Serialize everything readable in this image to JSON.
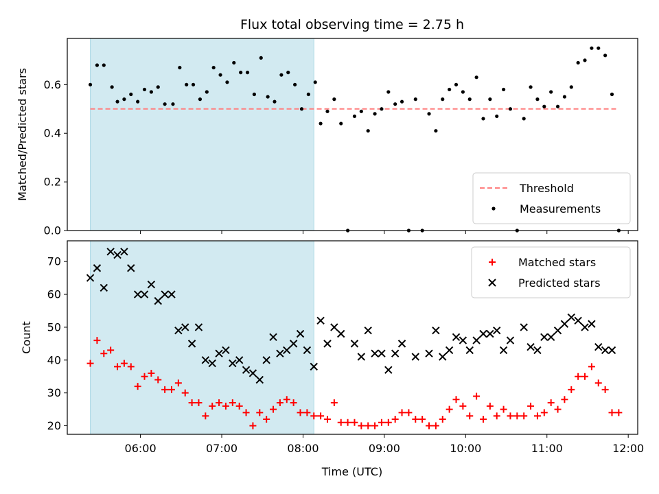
{
  "chart_data": {
    "type": "scatter",
    "title": "Flux total observing time = 2.75 h",
    "xlabel": "Time (UTC)",
    "x_ticks": [
      "06:00",
      "07:00",
      "08:00",
      "09:00",
      "10:00",
      "11:00",
      "12:00"
    ],
    "highlight_span": {
      "start": "05:23",
      "end": "08:08",
      "color": "#add8e6"
    },
    "panels": [
      {
        "ylabel": "Matched/Predicted stars",
        "ylim": [
          0,
          0.79
        ],
        "y_ticks": [
          "0.0",
          "0.2",
          "0.4",
          "0.6"
        ],
        "legend": "bottom-right",
        "threshold": {
          "name": "Threshold",
          "value": 0.5,
          "x_range": [
            "05:23",
            "11:51"
          ],
          "color": "#ff7f7f"
        },
        "series": [
          {
            "name": "Measurements",
            "color": "#000000",
            "marker": "dot",
            "points": [
              [
                "05:23",
                0.6
              ],
              [
                "05:28",
                0.68
              ],
              [
                "05:33",
                0.68
              ],
              [
                "05:39",
                0.59
              ],
              [
                "05:43",
                0.53
              ],
              [
                "05:48",
                0.54
              ],
              [
                "05:53",
                0.56
              ],
              [
                "05:58",
                0.53
              ],
              [
                "06:03",
                0.58
              ],
              [
                "06:08",
                0.57
              ],
              [
                "06:13",
                0.59
              ],
              [
                "06:18",
                0.52
              ],
              [
                "06:24",
                0.52
              ],
              [
                "06:29",
                0.67
              ],
              [
                "06:34",
                0.6
              ],
              [
                "06:39",
                0.6
              ],
              [
                "06:44",
                0.54
              ],
              [
                "06:49",
                0.57
              ],
              [
                "06:54",
                0.67
              ],
              [
                "06:59",
                0.64
              ],
              [
                "07:04",
                0.61
              ],
              [
                "07:09",
                0.69
              ],
              [
                "07:14",
                0.65
              ],
              [
                "07:19",
                0.65
              ],
              [
                "07:24",
                0.56
              ],
              [
                "07:29",
                0.71
              ],
              [
                "07:34",
                0.55
              ],
              [
                "07:39",
                0.53
              ],
              [
                "07:44",
                0.64
              ],
              [
                "07:49",
                0.65
              ],
              [
                "07:54",
                0.6
              ],
              [
                "07:59",
                0.5
              ],
              [
                "08:04",
                0.56
              ],
              [
                "08:09",
                0.61
              ],
              [
                "08:13",
                0.44
              ],
              [
                "08:18",
                0.49
              ],
              [
                "08:23",
                0.54
              ],
              [
                "08:28",
                0.44
              ],
              [
                "08:33",
                0.0
              ],
              [
                "08:38",
                0.47
              ],
              [
                "08:43",
                0.49
              ],
              [
                "08:48",
                0.41
              ],
              [
                "08:53",
                0.48
              ],
              [
                "08:58",
                0.5
              ],
              [
                "09:03",
                0.57
              ],
              [
                "09:08",
                0.52
              ],
              [
                "09:13",
                0.53
              ],
              [
                "09:18",
                0.0
              ],
              [
                "09:23",
                0.54
              ],
              [
                "09:28",
                0.0
              ],
              [
                "09:33",
                0.48
              ],
              [
                "09:38",
                0.41
              ],
              [
                "09:43",
                0.54
              ],
              [
                "09:48",
                0.58
              ],
              [
                "09:53",
                0.6
              ],
              [
                "09:58",
                0.57
              ],
              [
                "10:03",
                0.54
              ],
              [
                "10:08",
                0.63
              ],
              [
                "10:13",
                0.46
              ],
              [
                "10:18",
                0.54
              ],
              [
                "10:23",
                0.47
              ],
              [
                "10:28",
                0.58
              ],
              [
                "10:33",
                0.5
              ],
              [
                "10:38",
                0.0
              ],
              [
                "10:43",
                0.46
              ],
              [
                "10:48",
                0.59
              ],
              [
                "10:53",
                0.54
              ],
              [
                "10:58",
                0.51
              ],
              [
                "11:03",
                0.57
              ],
              [
                "11:08",
                0.51
              ],
              [
                "11:13",
                0.55
              ],
              [
                "11:18",
                0.59
              ],
              [
                "11:23",
                0.69
              ],
              [
                "11:28",
                0.7
              ],
              [
                "11:33",
                0.75
              ],
              [
                "11:38",
                0.75
              ],
              [
                "11:43",
                0.72
              ],
              [
                "11:48",
                0.56
              ],
              [
                "11:53",
                0.0
              ]
            ]
          }
        ]
      },
      {
        "ylabel": "Count",
        "ylim": [
          17.4,
          76.3
        ],
        "y_ticks": [
          "20",
          "30",
          "40",
          "50",
          "60",
          "70"
        ],
        "legend": "top-right",
        "series": [
          {
            "name": "Matched stars",
            "color": "#ff0000",
            "marker": "plus",
            "points": [
              [
                "05:23",
                39
              ],
              [
                "05:28",
                46
              ],
              [
                "05:33",
                42
              ],
              [
                "05:38",
                43
              ],
              [
                "05:43",
                38
              ],
              [
                "05:48",
                39
              ],
              [
                "05:53",
                38
              ],
              [
                "05:58",
                32
              ],
              [
                "06:03",
                35
              ],
              [
                "06:08",
                36
              ],
              [
                "06:13",
                34
              ],
              [
                "06:18",
                31
              ],
              [
                "06:23",
                31
              ],
              [
                "06:28",
                33
              ],
              [
                "06:33",
                30
              ],
              [
                "06:38",
                27
              ],
              [
                "06:43",
                27
              ],
              [
                "06:48",
                23
              ],
              [
                "06:53",
                26
              ],
              [
                "06:58",
                27
              ],
              [
                "07:03",
                26
              ],
              [
                "07:08",
                27
              ],
              [
                "07:13",
                26
              ],
              [
                "07:18",
                24
              ],
              [
                "07:23",
                20
              ],
              [
                "07:28",
                24
              ],
              [
                "07:33",
                22
              ],
              [
                "07:38",
                25
              ],
              [
                "07:43",
                27
              ],
              [
                "07:48",
                28
              ],
              [
                "07:53",
                27
              ],
              [
                "07:58",
                24
              ],
              [
                "08:03",
                24
              ],
              [
                "08:08",
                23
              ],
              [
                "08:13",
                23
              ],
              [
                "08:18",
                22
              ],
              [
                "08:23",
                27
              ],
              [
                "08:28",
                21
              ],
              [
                "08:33",
                21
              ],
              [
                "08:38",
                21
              ],
              [
                "08:43",
                20
              ],
              [
                "08:48",
                20
              ],
              [
                "08:53",
                20
              ],
              [
                "08:58",
                21
              ],
              [
                "09:03",
                21
              ],
              [
                "09:08",
                22
              ],
              [
                "09:13",
                24
              ],
              [
                "09:18",
                24
              ],
              [
                "09:23",
                22
              ],
              [
                "09:28",
                22
              ],
              [
                "09:33",
                20
              ],
              [
                "09:38",
                20
              ],
              [
                "09:43",
                22
              ],
              [
                "09:48",
                25
              ],
              [
                "09:53",
                28
              ],
              [
                "09:58",
                26
              ],
              [
                "10:03",
                23
              ],
              [
                "10:08",
                29
              ],
              [
                "10:13",
                22
              ],
              [
                "10:18",
                26
              ],
              [
                "10:23",
                23
              ],
              [
                "10:28",
                25
              ],
              [
                "10:33",
                23
              ],
              [
                "10:38",
                23
              ],
              [
                "10:43",
                23
              ],
              [
                "10:48",
                26
              ],
              [
                "10:53",
                23
              ],
              [
                "10:58",
                24
              ],
              [
                "11:03",
                27
              ],
              [
                "11:08",
                25
              ],
              [
                "11:13",
                28
              ],
              [
                "11:18",
                31
              ],
              [
                "11:23",
                35
              ],
              [
                "11:28",
                35
              ],
              [
                "11:33",
                38
              ],
              [
                "11:38",
                33
              ],
              [
                "11:43",
                31
              ],
              [
                "11:48",
                24
              ],
              [
                "11:53",
                24
              ]
            ]
          },
          {
            "name": "Predicted stars",
            "color": "#000000",
            "marker": "x",
            "points": [
              [
                "05:23",
                65
              ],
              [
                "05:28",
                68
              ],
              [
                "05:33",
                62
              ],
              [
                "05:38",
                73
              ],
              [
                "05:43",
                72
              ],
              [
                "05:48",
                73
              ],
              [
                "05:53",
                68
              ],
              [
                "05:58",
                60
              ],
              [
                "06:03",
                60
              ],
              [
                "06:08",
                63
              ],
              [
                "06:13",
                58
              ],
              [
                "06:18",
                60
              ],
              [
                "06:23",
                60
              ],
              [
                "06:28",
                49
              ],
              [
                "06:33",
                50
              ],
              [
                "06:38",
                45
              ],
              [
                "06:43",
                50
              ],
              [
                "06:48",
                40
              ],
              [
                "06:53",
                39
              ],
              [
                "06:58",
                42
              ],
              [
                "07:03",
                43
              ],
              [
                "07:08",
                39
              ],
              [
                "07:13",
                40
              ],
              [
                "07:18",
                37
              ],
              [
                "07:23",
                36
              ],
              [
                "07:28",
                34
              ],
              [
                "07:33",
                40
              ],
              [
                "07:38",
                47
              ],
              [
                "07:43",
                42
              ],
              [
                "07:48",
                43
              ],
              [
                "07:53",
                45
              ],
              [
                "07:58",
                48
              ],
              [
                "08:03",
                43
              ],
              [
                "08:08",
                38
              ],
              [
                "08:13",
                52
              ],
              [
                "08:18",
                45
              ],
              [
                "08:23",
                50
              ],
              [
                "08:28",
                48
              ],
              [
                "08:38",
                45
              ],
              [
                "08:43",
                41
              ],
              [
                "08:48",
                49
              ],
              [
                "08:53",
                42
              ],
              [
                "08:58",
                42
              ],
              [
                "09:03",
                37
              ],
              [
                "09:08",
                42
              ],
              [
                "09:13",
                45
              ],
              [
                "09:23",
                41
              ],
              [
                "09:33",
                42
              ],
              [
                "09:38",
                49
              ],
              [
                "09:43",
                41
              ],
              [
                "09:48",
                43
              ],
              [
                "09:53",
                47
              ],
              [
                "09:58",
                46
              ],
              [
                "10:03",
                43
              ],
              [
                "10:08",
                46
              ],
              [
                "10:13",
                48
              ],
              [
                "10:18",
                48
              ],
              [
                "10:23",
                49
              ],
              [
                "10:28",
                43
              ],
              [
                "10:33",
                46
              ],
              [
                "10:43",
                50
              ],
              [
                "10:48",
                44
              ],
              [
                "10:53",
                43
              ],
              [
                "10:58",
                47
              ],
              [
                "11:03",
                47
              ],
              [
                "11:08",
                49
              ],
              [
                "11:13",
                51
              ],
              [
                "11:18",
                53
              ],
              [
                "11:23",
                52
              ],
              [
                "11:28",
                50
              ],
              [
                "11:33",
                51
              ],
              [
                "11:38",
                44
              ],
              [
                "11:43",
                43
              ],
              [
                "11:48",
                43
              ]
            ]
          }
        ]
      }
    ]
  }
}
